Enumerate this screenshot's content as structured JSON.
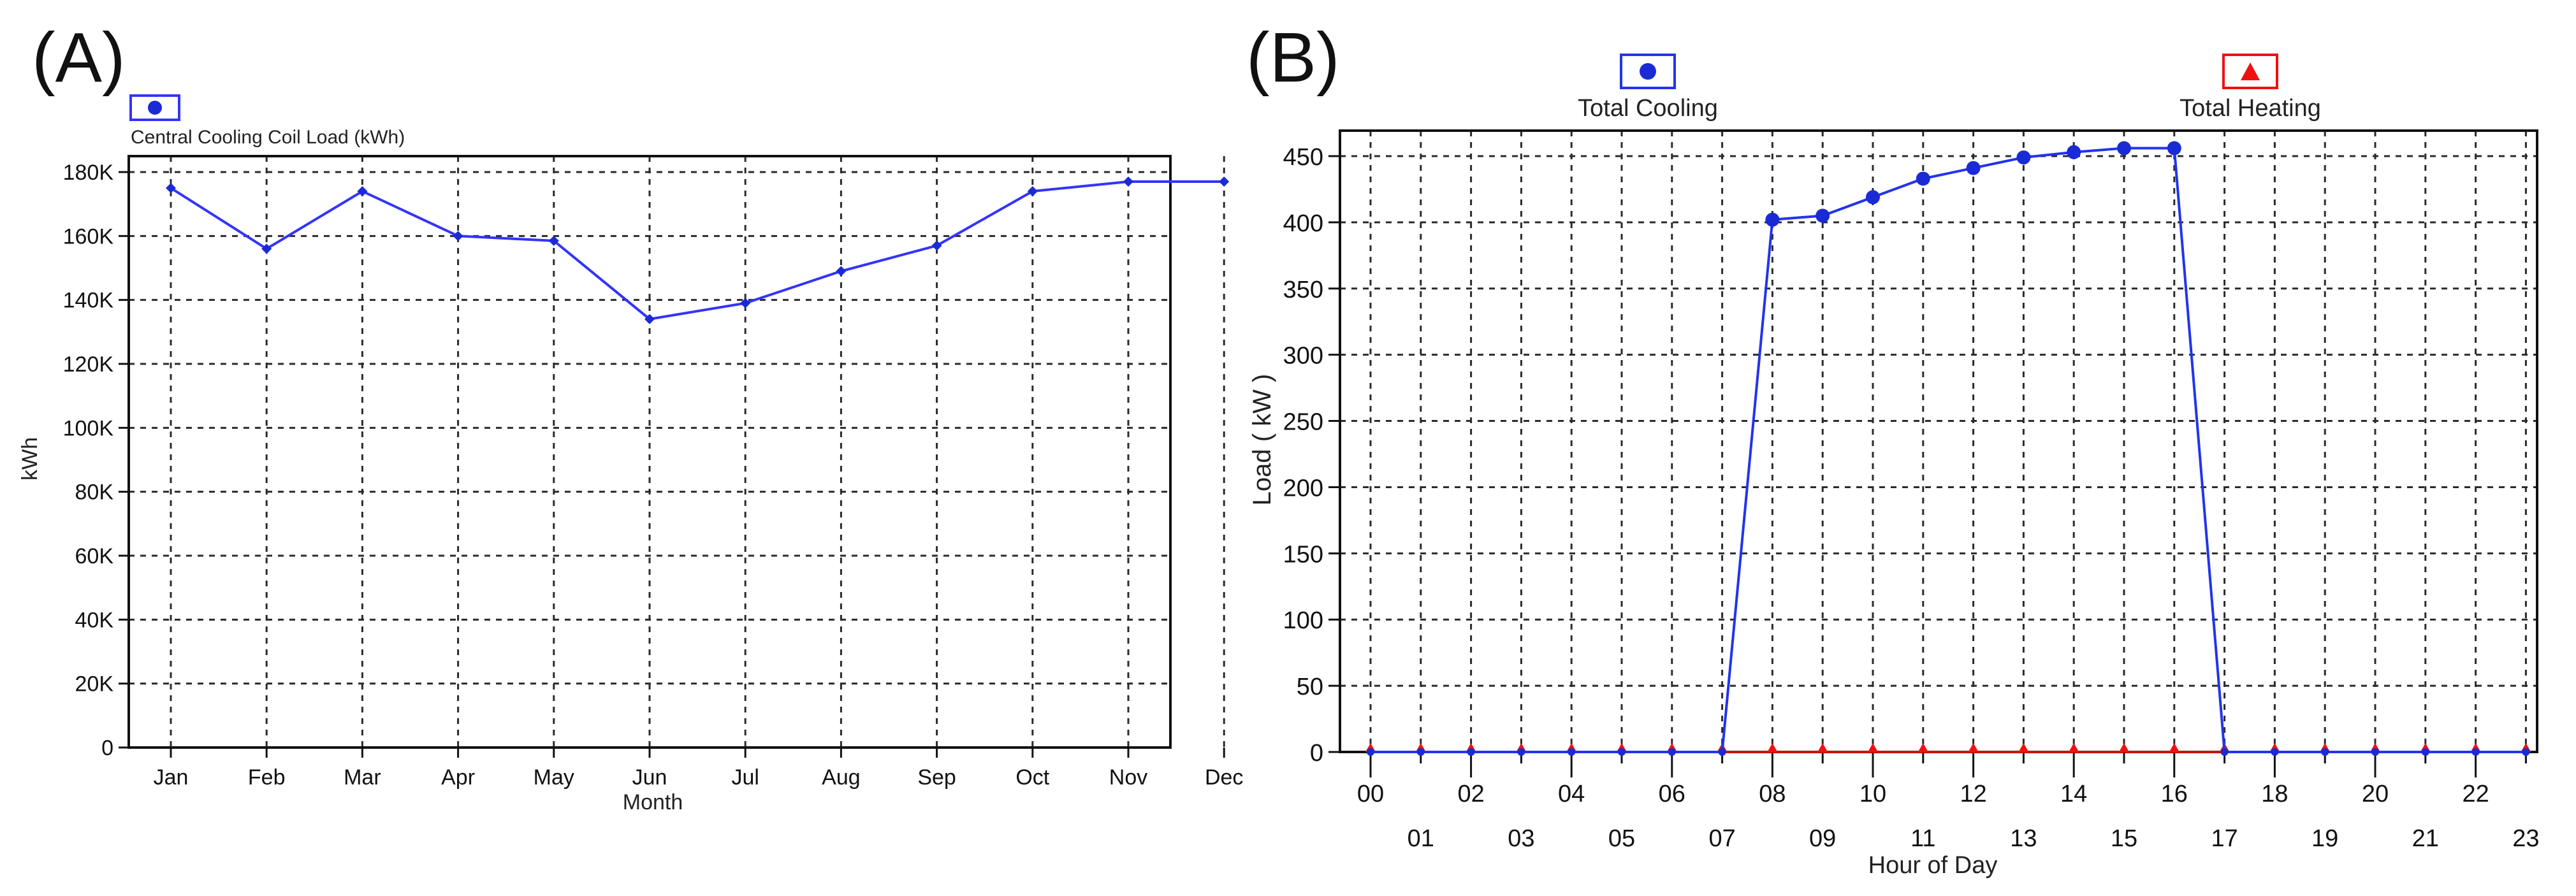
{
  "panels": [
    {
      "letter": "(A)",
      "legend": [
        "Central Cooling Coil Load (kWh)"
      ]
    },
    {
      "letter": "(B)",
      "legend": [
        "Total Cooling",
        "Total Heating"
      ]
    }
  ],
  "chart_data": [
    {
      "type": "line",
      "title": "",
      "xlabel": "Month",
      "ylabel": "kWh",
      "ylim": [
        0,
        180000
      ],
      "grid": true,
      "legend_position": "top-left",
      "categories": [
        "Jan",
        "Feb",
        "Mar",
        "Apr",
        "May",
        "Jun",
        "Jul",
        "Aug",
        "Sep",
        "Oct",
        "Nov",
        "Dec"
      ],
      "y_tick_labels": [
        "0",
        "20K",
        "40K",
        "60K",
        "80K",
        "100K",
        "120K",
        "140K",
        "160K",
        "180K"
      ],
      "series": [
        {
          "name": "Central Cooling Coil Load (kWh)",
          "color": "#3333ff",
          "values": [
            175000,
            156000,
            174000,
            160000,
            158500,
            134000,
            139000,
            149000,
            157000,
            174000,
            177000,
            177000
          ]
        }
      ]
    },
    {
      "type": "line",
      "title": "",
      "xlabel": "Hour of Day",
      "ylabel": "Load ( kW )",
      "ylim": [
        0,
        450
      ],
      "grid": true,
      "legend_position": "top",
      "categories": [
        "00",
        "01",
        "02",
        "03",
        "04",
        "05",
        "06",
        "07",
        "08",
        "09",
        "10",
        "11",
        "12",
        "13",
        "14",
        "15",
        "16",
        "17",
        "18",
        "19",
        "20",
        "21",
        "22",
        "23"
      ],
      "y_tick_labels": [
        "0",
        "50",
        "100",
        "150",
        "200",
        "250",
        "300",
        "350",
        "400",
        "450"
      ],
      "series": [
        {
          "name": "Total Cooling",
          "color": "#2233ee",
          "marker": "circle",
          "values": [
            0,
            0,
            0,
            0,
            0,
            0,
            0,
            0,
            402,
            405,
            419,
            433,
            441,
            449,
            453,
            456,
            456,
            0,
            0,
            0,
            0,
            0,
            0,
            0
          ]
        },
        {
          "name": "Total Heating",
          "color": "#ee1111",
          "marker": "triangle",
          "values": [
            0,
            0,
            0,
            0,
            0,
            0,
            0,
            0,
            0,
            0,
            0,
            0,
            0,
            0,
            0,
            0,
            0,
            0,
            0,
            0,
            0,
            0,
            0,
            0
          ]
        }
      ]
    }
  ]
}
